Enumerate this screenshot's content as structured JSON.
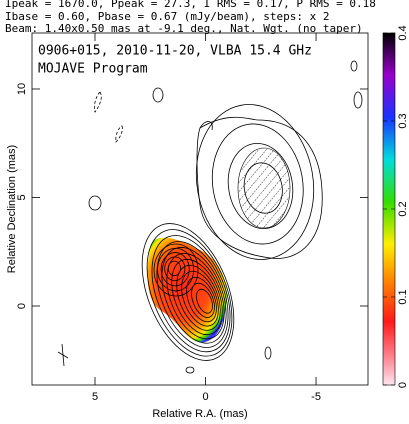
{
  "chart_data": {
    "type": "contour",
    "header": [
      "Ipeak = 1670.0, Ppeak = 27.3, I RMS = 0.17, P RMS = 0.18",
      "Ibase = 0.60, Pbase = 0.67 (mJy/beam), steps: x 2",
      "Beam: 1.40x0.50 mas at -9.1 deg., Nat. Wgt. (no taper)"
    ],
    "title": "0906+015, 2010-11-20, VLBA 15.4 GHz",
    "subtitle": "MOJAVE Program",
    "x_label": "Relative R.A. (mas)",
    "y_label": "Relative Declination (mas)",
    "xlim": [
      7.85,
      -7.35
    ],
    "xticks": [
      5,
      0,
      -5
    ],
    "ylim": [
      -3.64,
      12.58
    ],
    "yticks": [
      0,
      5,
      10
    ],
    "clim": [
      0,
      0.4
    ],
    "cticks": [
      0,
      0.1,
      0.2,
      0.3,
      0.4
    ]
  }
}
